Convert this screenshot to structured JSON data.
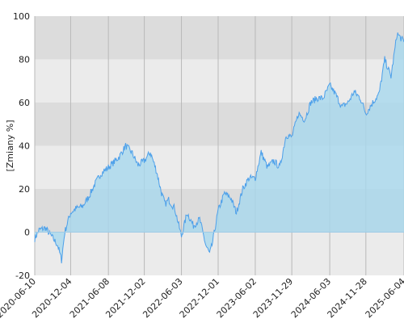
{
  "chart_data": {
    "type": "area",
    "title": "",
    "xlabel": "",
    "ylabel": "[Zmiany %]",
    "ylim": [
      -20,
      100
    ],
    "xlim": [
      "2020-06-10",
      "2025-06-04"
    ],
    "grid": true,
    "legend": "none",
    "y_ticks": [
      "-20",
      "0",
      "20",
      "40",
      "60",
      "80",
      "100"
    ],
    "x_ticks": [
      "2020-06-10",
      "2020-12-04",
      "2021-06-08",
      "2021-12-02",
      "2022-06-03",
      "2022-12-01",
      "2023-06-02",
      "2023-11-29",
      "2024-06-03",
      "2024-11-28",
      "2025-06-04"
    ],
    "series": [
      {
        "line_color": "#4da0ea",
        "fill_color": "#a8d8ee",
        "x": [
          "2020-06-10",
          "2020-07-01",
          "2020-08-01",
          "2020-09-01",
          "2020-10-01",
          "2020-10-20",
          "2020-11-05",
          "2020-11-20",
          "2020-12-04",
          "2021-01-01",
          "2021-02-01",
          "2021-03-01",
          "2021-04-01",
          "2021-05-01",
          "2021-06-08",
          "2021-07-01",
          "2021-08-01",
          "2021-09-01",
          "2021-10-01",
          "2021-11-01",
          "2021-12-02",
          "2022-01-01",
          "2022-02-01",
          "2022-02-25",
          "2022-03-15",
          "2022-04-01",
          "2022-05-01",
          "2022-06-03",
          "2022-07-01",
          "2022-08-01",
          "2022-09-01",
          "2022-10-01",
          "2022-10-20",
          "2022-11-01",
          "2022-12-01",
          "2023-01-01",
          "2023-02-01",
          "2023-03-01",
          "2023-04-01",
          "2023-05-01",
          "2023-06-02",
          "2023-07-01",
          "2023-08-01",
          "2023-09-01",
          "2023-10-01",
          "2023-11-01",
          "2023-11-29",
          "2024-01-01",
          "2024-02-01",
          "2024-03-01",
          "2024-04-01",
          "2024-05-01",
          "2024-06-03",
          "2024-07-01",
          "2024-08-01",
          "2024-09-01",
          "2024-10-01",
          "2024-11-01",
          "2024-11-28",
          "2025-01-01",
          "2025-02-01",
          "2025-03-01",
          "2025-04-01",
          "2025-05-01",
          "2025-06-04"
        ],
        "values": [
          -3,
          1,
          2,
          -2,
          -6,
          -13,
          0,
          5,
          9,
          11,
          12,
          16,
          22,
          27,
          30,
          32,
          35,
          40,
          37,
          31,
          33,
          37,
          28,
          18,
          13,
          15,
          11,
          -2,
          9,
          3,
          6,
          -6,
          -10,
          -6,
          10,
          18,
          16,
          9,
          20,
          25,
          25,
          37,
          30,
          33,
          30,
          45,
          44,
          55,
          52,
          60,
          62,
          62,
          68,
          64,
          58,
          60,
          65,
          62,
          55,
          60,
          64,
          80,
          72,
          92,
          88
        ]
      }
    ]
  }
}
